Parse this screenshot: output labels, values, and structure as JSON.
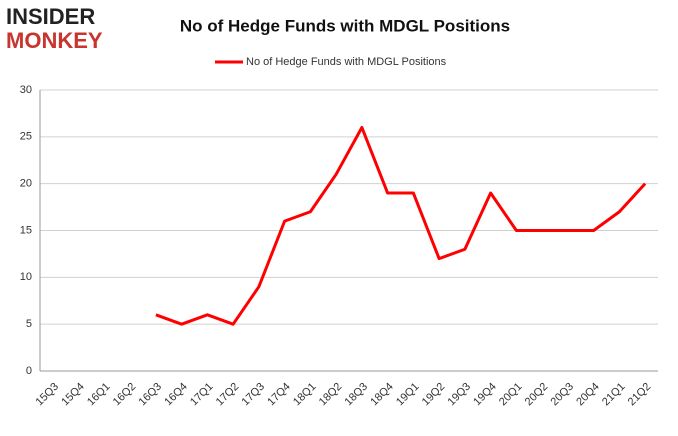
{
  "logo": {
    "line1": "INSIDER",
    "line2": "MONKEY"
  },
  "chart_data": {
    "type": "line",
    "title": "No of Hedge Funds with MDGL Positions",
    "categories": [
      "15Q3",
      "15Q4",
      "16Q1",
      "16Q2",
      "16Q3",
      "16Q4",
      "17Q1",
      "17Q2",
      "17Q3",
      "17Q4",
      "18Q1",
      "18Q2",
      "18Q3",
      "18Q4",
      "19Q1",
      "19Q2",
      "19Q3",
      "19Q4",
      "20Q1",
      "20Q2",
      "20Q3",
      "20Q4",
      "21Q1",
      "21Q2"
    ],
    "series": [
      {
        "name": "No of Hedge Funds with MDGL Positions",
        "color": "#ff0000",
        "values": [
          null,
          null,
          null,
          null,
          6,
          5,
          6,
          5,
          9,
          16,
          17,
          21,
          26,
          19,
          19,
          12,
          13,
          19,
          15,
          15,
          15,
          15,
          17,
          20
        ]
      }
    ],
    "ylim": [
      0,
      30
    ],
    "yticks": [
      0,
      5,
      10,
      15,
      20,
      25,
      30
    ],
    "grid": true,
    "legend": "top"
  }
}
